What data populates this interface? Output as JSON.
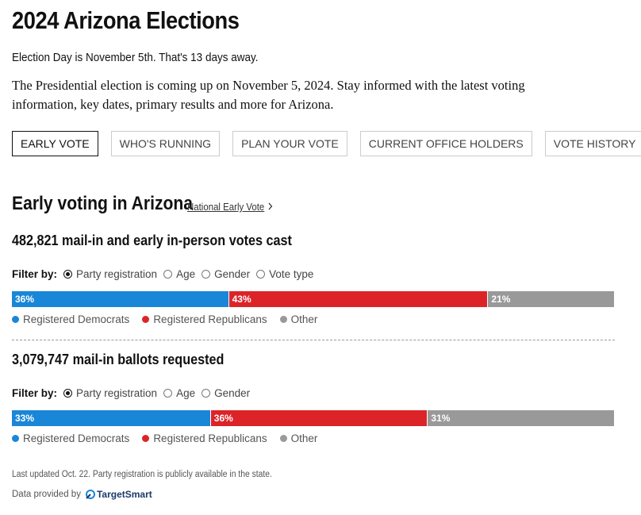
{
  "header": {
    "title": "2024 Arizona Elections",
    "countdown": "Election Day is November 5th. That's 13 days away.",
    "intro": "The Presidential election is coming up on November 5, 2024. Stay informed with the latest voting information, key dates, primary results and more for Arizona."
  },
  "tabs": [
    "EARLY VOTE",
    "WHO'S RUNNING",
    "PLAN YOUR VOTE",
    "CURRENT OFFICE HOLDERS",
    "VOTE HISTORY"
  ],
  "section": {
    "title": "Early voting in Arizona",
    "link": "National Early Vote"
  },
  "chart_data": [
    {
      "type": "bar",
      "stacked": true,
      "orientation": "horizontal",
      "title": "482,821 mail-in and early in-person votes cast",
      "filter_label": "Filter by:",
      "filters": [
        "Party registration",
        "Age",
        "Gender",
        "Vote type"
      ],
      "xlim": [
        0,
        100
      ],
      "series": [
        {
          "name": "Registered Democrats",
          "color": "#1a86d8",
          "values": [
            36
          ],
          "value_labels": [
            "36%"
          ]
        },
        {
          "name": "Registered Republicans",
          "color": "#dc2428",
          "values": [
            43
          ],
          "value_labels": [
            "43%"
          ]
        },
        {
          "name": "Other",
          "color": "#999999",
          "values": [
            21
          ],
          "value_labels": [
            "21%"
          ]
        }
      ]
    },
    {
      "type": "bar",
      "stacked": true,
      "orientation": "horizontal",
      "title": "3,079,747 mail-in ballots requested",
      "filter_label": "Filter by:",
      "filters": [
        "Party registration",
        "Age",
        "Gender"
      ],
      "xlim": [
        0,
        100
      ],
      "series": [
        {
          "name": "Registered Democrats",
          "color": "#1a86d8",
          "values": [
            33
          ],
          "value_labels": [
            "33%"
          ]
        },
        {
          "name": "Registered Republicans",
          "color": "#dc2428",
          "values": [
            36
          ],
          "value_labels": [
            "36%"
          ]
        },
        {
          "name": "Other",
          "color": "#999999",
          "values": [
            31
          ],
          "value_labels": [
            "31%"
          ]
        }
      ]
    }
  ],
  "footer": {
    "note": "Last updated Oct. 22. Party registration is publicly available in the state.",
    "source_label": "Data provided by",
    "source": "TargetSmart"
  }
}
